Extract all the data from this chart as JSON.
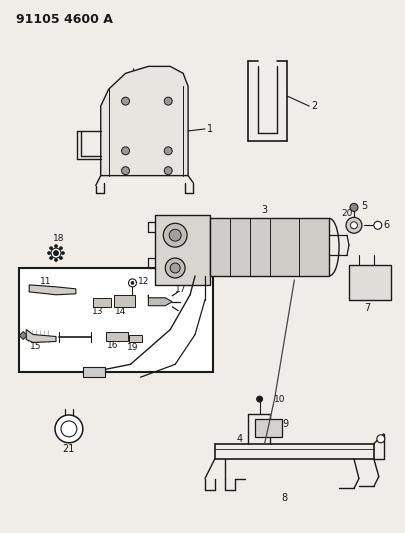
{
  "title": "91105 4600 A",
  "bg_color": "#f0ede8",
  "line_color": "#1a1a1a",
  "fig_width": 4.06,
  "fig_height": 5.33,
  "dpi": 100
}
